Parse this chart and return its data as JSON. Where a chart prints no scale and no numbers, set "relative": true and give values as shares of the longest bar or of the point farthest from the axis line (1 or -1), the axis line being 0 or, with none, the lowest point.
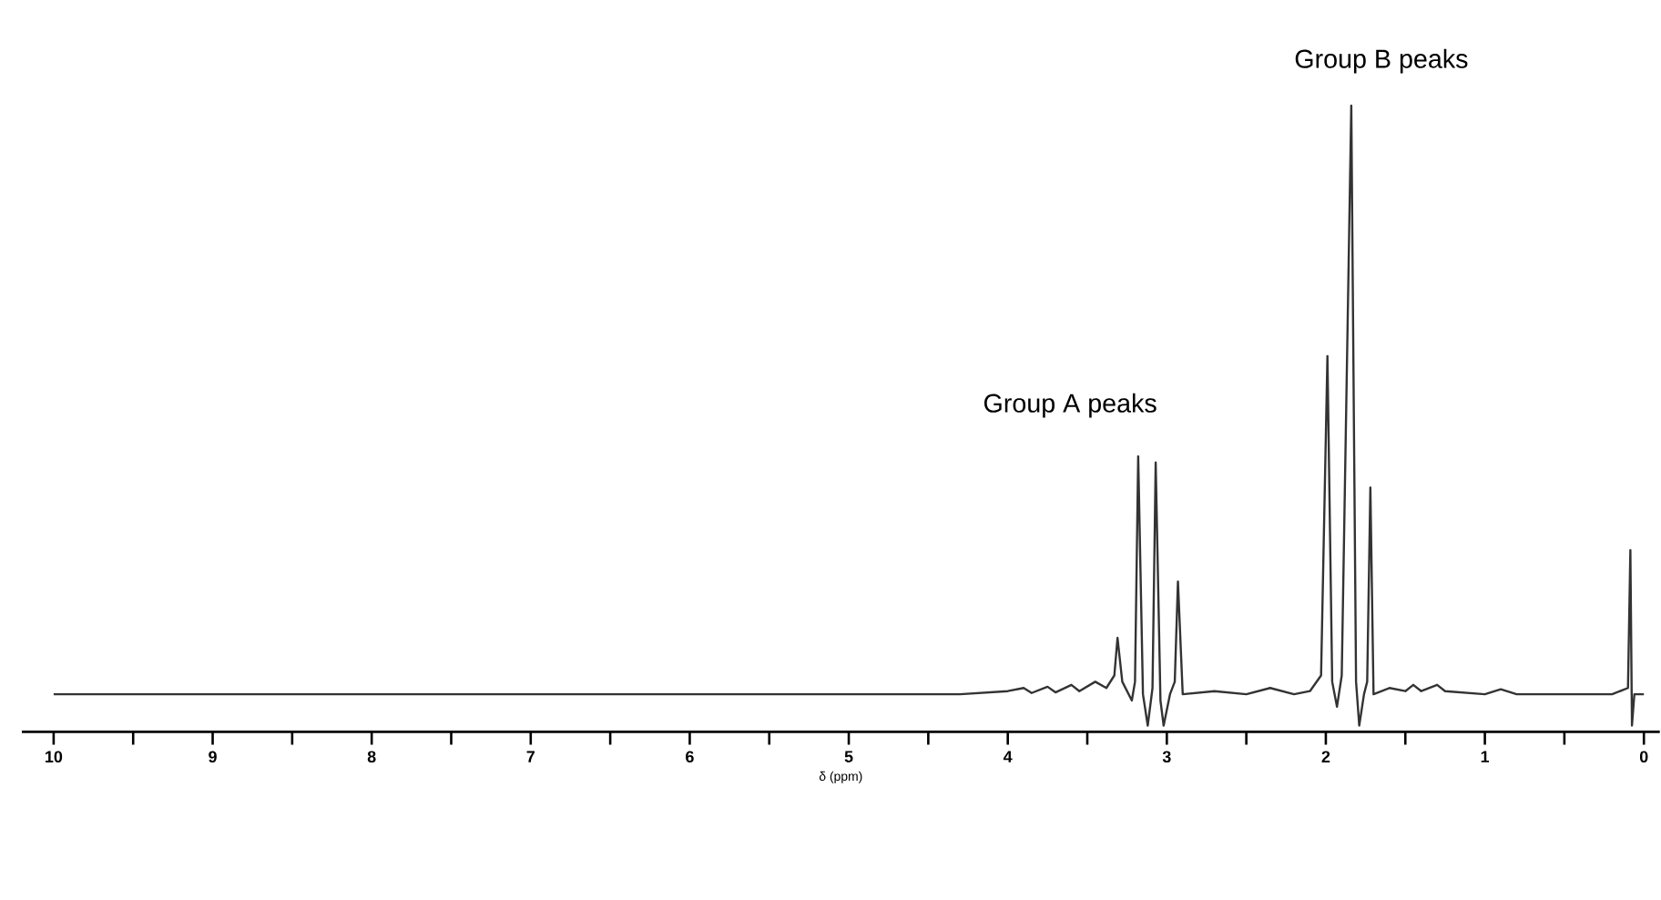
{
  "chart_data": {
    "type": "line",
    "relative": true,
    "xlabel": "δ (ppm)",
    "color": "#333333",
    "xlim": [
      10.2,
      -0.1
    ],
    "xticks": [
      10,
      {
        "value": 9.5,
        "label": null
      },
      9,
      {
        "value": 8.5,
        "label": null
      },
      8,
      {
        "value": 7.5,
        "label": null
      },
      7,
      {
        "value": 6.5,
        "label": null
      },
      6,
      {
        "value": 5.5,
        "label": null
      },
      5,
      {
        "value": 4.5,
        "label": null
      },
      4,
      {
        "value": 3.5,
        "label": null
      },
      3,
      {
        "value": 2.5,
        "label": null
      },
      2,
      {
        "value": 1.5,
        "label": null
      },
      1,
      {
        "value": 0.5,
        "label": null
      },
      0
    ],
    "x": [
      10.0,
      4.3,
      4.0,
      3.9,
      3.85,
      3.75,
      3.7,
      3.6,
      3.55,
      3.45,
      3.38,
      3.33,
      3.31,
      3.28,
      3.22,
      3.2,
      3.18,
      3.15,
      3.12,
      3.09,
      3.07,
      3.04,
      3.02,
      2.98,
      2.95,
      2.93,
      2.9,
      2.7,
      2.5,
      2.35,
      2.2,
      2.1,
      2.03,
      1.99,
      1.96,
      1.93,
      1.9,
      1.84,
      1.81,
      1.79,
      1.76,
      1.74,
      1.72,
      1.7,
      1.6,
      1.5,
      1.45,
      1.4,
      1.3,
      1.25,
      1.0,
      0.9,
      0.8,
      0.2,
      0.1,
      0.085,
      0.075,
      0.06,
      0.0
    ],
    "values": [
      0.06,
      0.06,
      0.065,
      0.07,
      0.062,
      0.072,
      0.063,
      0.075,
      0.065,
      0.08,
      0.07,
      0.09,
      0.15,
      0.08,
      0.05,
      0.08,
      0.44,
      0.06,
      0.01,
      0.07,
      0.43,
      0.05,
      0.01,
      0.06,
      0.08,
      0.24,
      0.06,
      0.065,
      0.06,
      0.07,
      0.06,
      0.065,
      0.09,
      0.6,
      0.08,
      0.04,
      0.09,
      1.0,
      0.08,
      0.01,
      0.06,
      0.08,
      0.39,
      0.06,
      0.07,
      0.065,
      0.075,
      0.065,
      0.075,
      0.065,
      0.06,
      0.068,
      0.06,
      0.06,
      0.07,
      0.29,
      0.01,
      0.06,
      0.06
    ],
    "annotations": [
      "Group A peaks",
      "Group B peaks"
    ]
  }
}
